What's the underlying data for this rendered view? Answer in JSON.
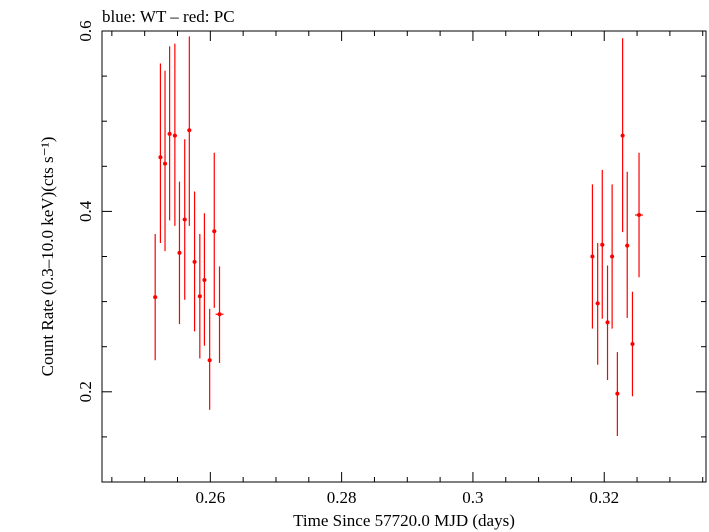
{
  "chart_data": {
    "type": "scatter",
    "title": "blue: WT – red: PC",
    "xlabel": "Time Since 57720.0 MJD (days)",
    "ylabel": "Count Rate (0.3–10.0 keV)(cts s⁻¹)",
    "xlim": [
      0.2435,
      0.3355
    ],
    "ylim": [
      0.1,
      0.6
    ],
    "xticks": [
      0.26,
      0.28,
      0.3,
      0.32
    ],
    "xtick_labels": [
      "0.26",
      "0.28",
      "0.3",
      "0.32"
    ],
    "yticks": [
      0.2,
      0.4,
      0.6
    ],
    "ytick_labels": [
      "0.2",
      "0.4",
      "0.6"
    ],
    "grid": false,
    "series": [
      {
        "color": "#ff0000",
        "points": [
          {
            "x": 0.2516,
            "y": 0.305,
            "yerr_lo": 0.07,
            "yerr_hi": 0.07,
            "xerr": 0.0003
          },
          {
            "x": 0.2524,
            "y": 0.46,
            "yerr_lo": 0.095,
            "yerr_hi": 0.104,
            "xerr": 0.0003
          },
          {
            "x": 0.2531,
            "y": 0.453,
            "yerr_lo": 0.097,
            "yerr_hi": 0.103,
            "xerr": 0.0003
          },
          {
            "x": 0.2538,
            "y": 0.486,
            "yerr_lo": 0.096,
            "yerr_hi": 0.097,
            "xerr": 0.0003
          },
          {
            "x": 0.2546,
            "y": 0.484,
            "yerr_lo": 0.1,
            "yerr_hi": 0.102,
            "xerr": 0.0003
          },
          {
            "x": 0.2553,
            "y": 0.354,
            "yerr_lo": 0.079,
            "yerr_hi": 0.079,
            "xerr": 0.0003
          },
          {
            "x": 0.2561,
            "y": 0.391,
            "yerr_lo": 0.089,
            "yerr_hi": 0.089,
            "xerr": 0.0003
          },
          {
            "x": 0.2568,
            "y": 0.49,
            "yerr_lo": 0.106,
            "yerr_hi": 0.104,
            "xerr": 0.0003
          },
          {
            "x": 0.2576,
            "y": 0.344,
            "yerr_lo": 0.077,
            "yerr_hi": 0.078,
            "xerr": 0.0003
          },
          {
            "x": 0.2584,
            "y": 0.306,
            "yerr_lo": 0.069,
            "yerr_hi": 0.069,
            "xerr": 0.0003
          },
          {
            "x": 0.2591,
            "y": 0.324,
            "yerr_lo": 0.073,
            "yerr_hi": 0.074,
            "xerr": 0.0003
          },
          {
            "x": 0.2599,
            "y": 0.235,
            "yerr_lo": 0.055,
            "yerr_hi": 0.057,
            "xerr": 0.0003
          },
          {
            "x": 0.2606,
            "y": 0.378,
            "yerr_lo": 0.085,
            "yerr_hi": 0.087,
            "xerr": 0.0003
          },
          {
            "x": 0.2614,
            "y": 0.286,
            "yerr_lo": 0.054,
            "yerr_hi": 0.053,
            "xerr": 0.0006
          },
          {
            "x": 0.3182,
            "y": 0.35,
            "yerr_lo": 0.08,
            "yerr_hi": 0.08,
            "xerr": 0.0003
          },
          {
            "x": 0.319,
            "y": 0.298,
            "yerr_lo": 0.068,
            "yerr_hi": 0.067,
            "xerr": 0.0003
          },
          {
            "x": 0.3197,
            "y": 0.363,
            "yerr_lo": 0.082,
            "yerr_hi": 0.083,
            "xerr": 0.0003
          },
          {
            "x": 0.3205,
            "y": 0.277,
            "yerr_lo": 0.064,
            "yerr_hi": 0.063,
            "xerr": 0.0003
          },
          {
            "x": 0.3212,
            "y": 0.35,
            "yerr_lo": 0.08,
            "yerr_hi": 0.08,
            "xerr": 0.0003
          },
          {
            "x": 0.322,
            "y": 0.198,
            "yerr_lo": 0.047,
            "yerr_hi": 0.046,
            "xerr": 0.0003
          },
          {
            "x": 0.3228,
            "y": 0.484,
            "yerr_lo": 0.107,
            "yerr_hi": 0.108,
            "xerr": 0.0003
          },
          {
            "x": 0.3235,
            "y": 0.362,
            "yerr_lo": 0.08,
            "yerr_hi": 0.082,
            "xerr": 0.0003
          },
          {
            "x": 0.3243,
            "y": 0.253,
            "yerr_lo": 0.058,
            "yerr_hi": 0.058,
            "xerr": 0.0003
          },
          {
            "x": 0.3253,
            "y": 0.396,
            "yerr_lo": 0.069,
            "yerr_hi": 0.069,
            "xerr": 0.0006
          }
        ]
      }
    ]
  }
}
